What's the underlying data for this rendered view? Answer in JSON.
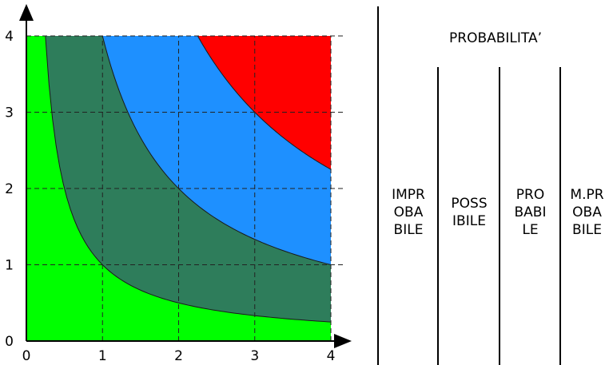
{
  "diagram": {
    "x_ticks": [
      "0",
      "1",
      "2",
      "3",
      "4"
    ],
    "y_ticks": [
      "0",
      "1",
      "2",
      "3",
      "4"
    ],
    "x_range": [
      0,
      4
    ],
    "y_range": [
      0,
      4
    ],
    "region_boundaries_xy": [
      1,
      4,
      9
    ],
    "region_colors": [
      "#00ff00",
      "#2e7d5b",
      "#1e90ff",
      "#ff0000"
    ],
    "grid": "dashed"
  },
  "panel": {
    "title": "PROBABILITA’",
    "columns": [
      "IMPR\nOBA\nBILE",
      "POSS\nIBILE",
      "PRO\nBABI\nLE",
      "M.PR\nOBA\nBILE"
    ]
  }
}
